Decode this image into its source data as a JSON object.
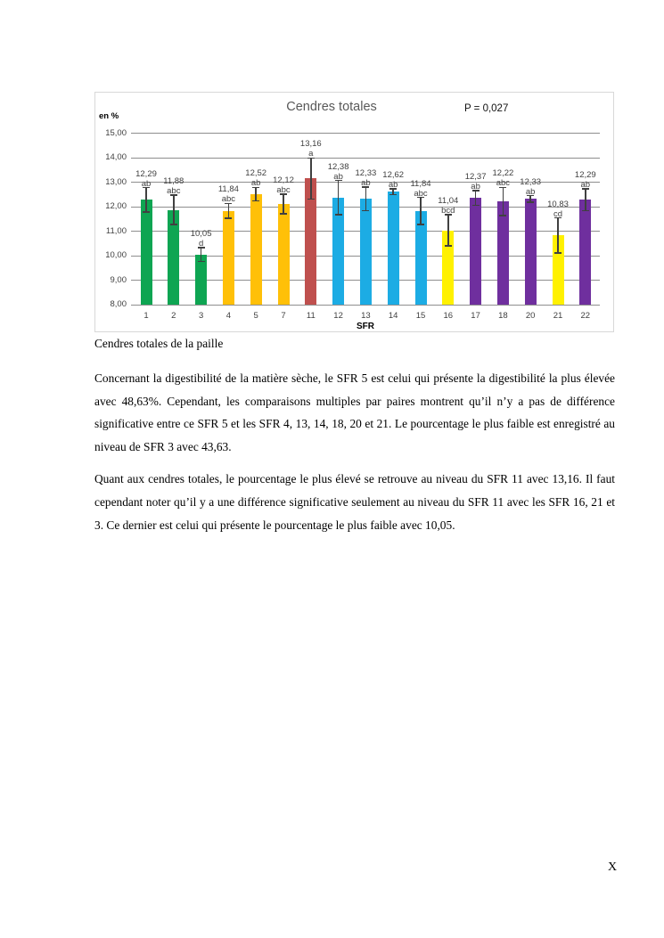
{
  "page": {
    "page_number": "X"
  },
  "chart_data": {
    "type": "bar",
    "title": "Cendres totales",
    "annotation": "P = 0,027",
    "xlabel": "SFR",
    "ylabel": "en %",
    "ylim": [
      8,
      15
    ],
    "ytick_step": 1,
    "ytick_labels": [
      "8,00",
      "9,00",
      "10,00",
      "11,00",
      "12,00",
      "13,00",
      "14,00",
      "15,00"
    ],
    "grid": true,
    "legend": "none",
    "categories": [
      "1",
      "2",
      "3",
      "4",
      "5",
      "7",
      "11",
      "12",
      "13",
      "14",
      "15",
      "16",
      "17",
      "18",
      "20",
      "21",
      "22"
    ],
    "values": [
      12.29,
      11.88,
      10.05,
      11.84,
      12.52,
      12.12,
      13.16,
      12.38,
      12.33,
      12.62,
      11.84,
      11.04,
      12.37,
      12.22,
      12.33,
      10.83,
      12.29
    ],
    "value_labels": [
      "12,29",
      "11,88",
      "10,05",
      "11,84",
      "12,52",
      "12,12",
      "13,16",
      "12,38",
      "12,33",
      "12,62",
      "11,84",
      "11,04",
      "12,37",
      "12,22",
      "12,33",
      "10,83",
      "12,29"
    ],
    "significance_letters": [
      "ab",
      "abc",
      "d",
      "abc",
      "ab",
      "abc",
      "a",
      "ab",
      "ab",
      "ab",
      "abc",
      "bcd",
      "ab",
      "abc",
      "ab",
      "cd",
      "ab"
    ],
    "errors": [
      0.5,
      0.6,
      0.28,
      0.3,
      0.28,
      0.4,
      0.84,
      0.7,
      0.48,
      0.12,
      0.55,
      0.64,
      0.3,
      0.58,
      0.13,
      0.72,
      0.45
    ],
    "bar_colors": [
      "#0EA552",
      "#0EA552",
      "#0EA552",
      "#FFC008",
      "#FFC008",
      "#FFC008",
      "#BF504E",
      "#1CACE4",
      "#1CACE4",
      "#1CACE4",
      "#1CACE4",
      "#FFF100",
      "#6F2F9E",
      "#6F2F9E",
      "#6F2F9E",
      "#FFF100",
      "#6F2F9E"
    ]
  },
  "document": {
    "caption": "Cendres totales de la paille",
    "paragraph_1": "Concernant la digestibilité de la matière sèche, le SFR 5 est celui qui présente la digestibilité la plus élevée avec 48,63%. Cependant, les comparaisons multiples par paires montrent qu’il n’y a pas de différence significative entre ce SFR 5 et les SFR 4, 13, 14, 18, 20 et 21. Le pourcentage le plus faible est enregistré au niveau de SFR 3 avec 43,63.",
    "paragraph_2": "Quant aux cendres totales, le pourcentage le plus élevé se retrouve au niveau du SFR 11 avec 13,16. Il faut cependant noter qu’il y a une différence significative seulement au niveau du SFR 11 avec les SFR 16, 21 et 3. Ce dernier est celui qui présente le pourcentage le plus faible avec 10,05."
  }
}
